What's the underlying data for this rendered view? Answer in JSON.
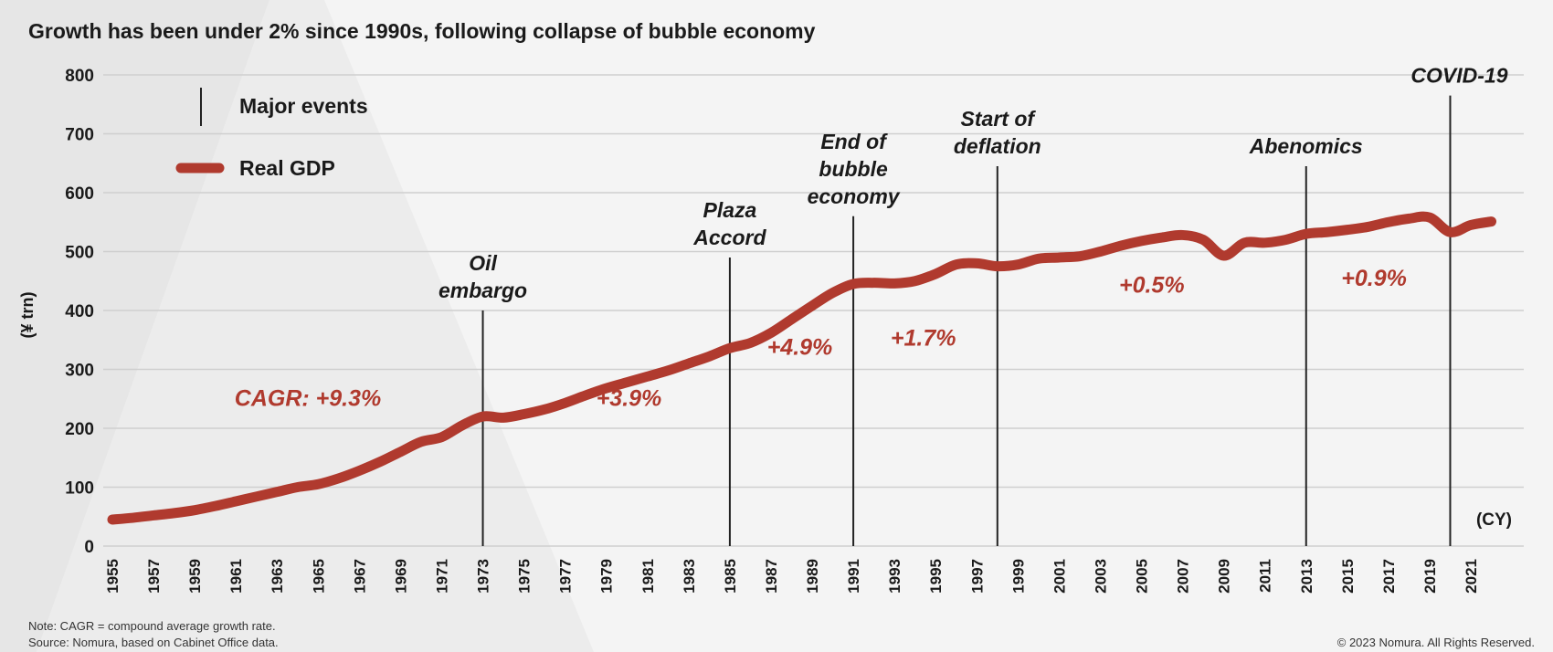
{
  "colors": {
    "background": "#f4f4f4",
    "shade_dark": "#e6e6e6",
    "shade_light": "#ececec",
    "line": "#b03a2e",
    "grid": "#cfcfcf",
    "event_line": "#222222"
  },
  "chart_data": {
    "type": "line",
    "title": "Growth has been under 2% since 1990s, following collapse of bubble economy",
    "ylabel": "(¥ trn)",
    "xlabel_unit": "(CY)",
    "ylim": [
      0,
      800
    ],
    "xlim": [
      1954,
      2023
    ],
    "grid": true,
    "yticks": [
      0,
      100,
      200,
      300,
      400,
      500,
      600,
      700,
      800
    ],
    "xticks": [
      1955,
      1957,
      1959,
      1961,
      1963,
      1965,
      1967,
      1969,
      1971,
      1973,
      1975,
      1977,
      1979,
      1981,
      1983,
      1985,
      1987,
      1989,
      1991,
      1993,
      1995,
      1997,
      1999,
      2001,
      2003,
      2005,
      2007,
      2009,
      2011,
      2013,
      2015,
      2017,
      2019,
      2021
    ],
    "legend": {
      "position": "top-left",
      "entries": [
        {
          "label": "Major events",
          "kind": "event-line"
        },
        {
          "label": "Real GDP",
          "kind": "series"
        }
      ]
    },
    "series": [
      {
        "name": "Real GDP",
        "x": [
          1955,
          1956,
          1957,
          1958,
          1959,
          1960,
          1961,
          1962,
          1963,
          1964,
          1965,
          1966,
          1967,
          1968,
          1969,
          1970,
          1971,
          1972,
          1973,
          1974,
          1975,
          1976,
          1977,
          1978,
          1979,
          1980,
          1981,
          1982,
          1983,
          1984,
          1985,
          1986,
          1987,
          1988,
          1989,
          1990,
          1991,
          1992,
          1993,
          1994,
          1995,
          1996,
          1997,
          1998,
          1999,
          2000,
          2001,
          2002,
          2003,
          2004,
          2005,
          2006,
          2007,
          2008,
          2009,
          2010,
          2011,
          2012,
          2013,
          2014,
          2015,
          2016,
          2017,
          2018,
          2019,
          2020,
          2021,
          2022
        ],
        "values": [
          45,
          48,
          52,
          56,
          61,
          68,
          76,
          84,
          92,
          100,
          105,
          115,
          128,
          143,
          160,
          177,
          185,
          205,
          220,
          218,
          224,
          232,
          243,
          256,
          268,
          278,
          288,
          298,
          310,
          322,
          336,
          345,
          362,
          385,
          408,
          430,
          445,
          447,
          446,
          450,
          462,
          478,
          480,
          475,
          478,
          488,
          490,
          492,
          500,
          510,
          518,
          524,
          528,
          520,
          493,
          515,
          515,
          520,
          530,
          533,
          537,
          542,
          550,
          556,
          558,
          533,
          545,
          551
        ]
      }
    ],
    "events": [
      {
        "year": 1973,
        "label": [
          "Oil",
          "embargo"
        ],
        "top_value": 400
      },
      {
        "year": 1985,
        "label": [
          "Plaza",
          "Accord"
        ],
        "top_value": 490
      },
      {
        "year": 1991,
        "label": [
          "End of",
          "bubble",
          "economy"
        ],
        "top_value": 560
      },
      {
        "year": 1998,
        "label": [
          "Start of",
          "deflation"
        ],
        "top_value": 645
      },
      {
        "year": 2013,
        "label": [
          "Abenomics"
        ],
        "top_value": 645
      },
      {
        "year": 2020,
        "label": [
          "COVID-19"
        ],
        "top_value": 765
      }
    ],
    "annotations": [
      {
        "text": "CAGR: +9.3%",
        "x": 1964.5,
        "y": 238
      },
      {
        "text": "+3.9%",
        "x": 1980.1,
        "y": 238
      },
      {
        "text": "+4.9%",
        "x": 1988.4,
        "y": 325
      },
      {
        "text": "+1.7%",
        "x": 1994.4,
        "y": 340
      },
      {
        "text": "+0.5%",
        "x": 2005.5,
        "y": 430
      },
      {
        "text": "+0.9%",
        "x": 2016.3,
        "y": 442
      }
    ]
  },
  "footer": {
    "note": "Note: CAGR = compound average growth rate.",
    "source": "Source: Nomura, based on Cabinet Office data.",
    "copyright": "© 2023 Nomura. All Rights Reserved."
  }
}
